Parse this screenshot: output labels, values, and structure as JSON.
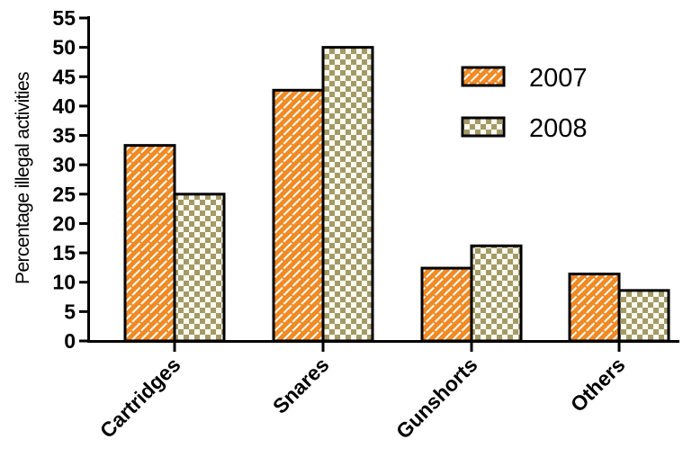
{
  "chart_data": {
    "type": "bar",
    "categories": [
      "Cartridges",
      "Snares",
      "Gunshorts",
      "Others"
    ],
    "series": [
      {
        "name": "2007",
        "values": [
          33.3,
          42.7,
          12.4,
          11.4
        ],
        "color": "#f08a24",
        "pattern": "brick"
      },
      {
        "name": "2008",
        "values": [
          25.0,
          50.0,
          16.2,
          8.6
        ],
        "color": "#a39a66",
        "pattern": "checker"
      }
    ],
    "ylabel": "Percentage illegal activities",
    "xlabel": "",
    "ylim": [
      0,
      55
    ],
    "yticks": [
      "0",
      "5",
      "10",
      "15",
      "20",
      "25",
      "30",
      "35",
      "40",
      "45",
      "50",
      "55"
    ],
    "grid": false,
    "legend_position": "top-right"
  }
}
